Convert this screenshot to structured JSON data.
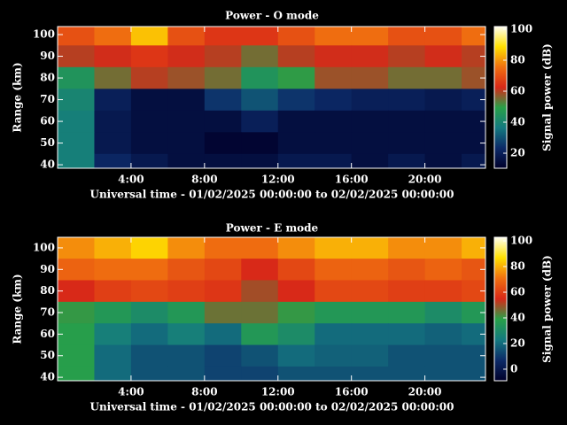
{
  "chart_data": [
    {
      "type": "heatmap",
      "title": "Power - O mode",
      "x_label": "Universal time - 01/02/2025 00:00:00 to 02/02/2025 00:00:00",
      "y_label": "Range (km)",
      "colorbar_label": "Signal power (dB)",
      "x": [
        1,
        3,
        5,
        7,
        9,
        11,
        13,
        15,
        17,
        19,
        21,
        23
      ],
      "y": [
        100,
        90,
        80,
        70,
        60,
        50,
        40
      ],
      "z": [
        [
          70,
          75,
          85,
          70,
          65,
          65,
          70,
          75,
          75,
          70,
          70,
          75
        ],
        [
          60,
          62,
          65,
          62,
          60,
          55,
          60,
          62,
          62,
          60,
          62,
          60
        ],
        [
          45,
          55,
          60,
          58,
          55,
          45,
          50,
          58,
          58,
          55,
          55,
          58
        ],
        [
          40,
          20,
          15,
          15,
          25,
          30,
          25,
          22,
          20,
          20,
          18,
          20
        ],
        [
          38,
          18,
          15,
          15,
          15,
          20,
          15,
          15,
          15,
          15,
          15,
          15
        ],
        [
          38,
          18,
          15,
          15,
          12,
          12,
          15,
          15,
          15,
          15,
          15,
          15
        ],
        [
          38,
          22,
          18,
          15,
          15,
          15,
          18,
          18,
          15,
          18,
          15,
          18
        ]
      ],
      "xlim": [
        0,
        23.3
      ],
      "ylim": [
        38.4,
        103.7
      ],
      "xticks": [
        {
          "value": 4,
          "label": "4:00"
        },
        {
          "value": 8,
          "label": "8:00"
        },
        {
          "value": 12,
          "label": "12:00"
        },
        {
          "value": 16,
          "label": "16:00"
        },
        {
          "value": 20,
          "label": "20:00"
        }
      ],
      "yticks": [
        40,
        50,
        60,
        70,
        80,
        90,
        100
      ],
      "clim": [
        10.3,
        101.7
      ],
      "cticks": [
        20,
        40,
        60,
        80,
        100
      ],
      "colormap": [
        "#00002a",
        "#0c2a68",
        "#147a80",
        "#28a048",
        "#d82818",
        "#f07010",
        "#ffe000",
        "#fffff0"
      ]
    },
    {
      "type": "heatmap",
      "title": "Power - E mode",
      "x_label": "Universal time - 01/02/2025 00:00:00 to 02/02/2025 00:00:00",
      "y_label": "Range (km)",
      "colorbar_label": "Signal power (dB)",
      "x": [
        1,
        3,
        5,
        7,
        9,
        11,
        13,
        15,
        17,
        19,
        21,
        23
      ],
      "y": [
        100,
        90,
        80,
        70,
        60,
        50,
        40
      ],
      "z": [
        [
          75,
          80,
          85,
          75,
          70,
          70,
          75,
          80,
          80,
          75,
          75,
          80
        ],
        [
          68,
          70,
          70,
          65,
          62,
          55,
          62,
          68,
          68,
          65,
          68,
          65
        ],
        [
          55,
          60,
          62,
          60,
          58,
          50,
          55,
          62,
          62,
          60,
          60,
          62
        ],
        [
          40,
          35,
          30,
          35,
          45,
          45,
          40,
          35,
          35,
          35,
          30,
          35
        ],
        [
          38,
          25,
          20,
          25,
          20,
          35,
          30,
          20,
          20,
          20,
          18,
          20
        ],
        [
          38,
          20,
          15,
          15,
          12,
          15,
          20,
          18,
          18,
          15,
          15,
          15
        ],
        [
          38,
          20,
          15,
          15,
          12,
          12,
          15,
          15,
          15,
          15,
          15,
          15
        ]
      ],
      "xlim": [
        0,
        23.3
      ],
      "ylim": [
        38.4,
        104.9
      ],
      "xticks": [
        {
          "value": 4,
          "label": "4:00"
        },
        {
          "value": 8,
          "label": "8:00"
        },
        {
          "value": 12,
          "label": "12:00"
        },
        {
          "value": 16,
          "label": "16:00"
        },
        {
          "value": 20,
          "label": "20:00"
        }
      ],
      "yticks": [
        40,
        50,
        60,
        70,
        80,
        90,
        100
      ],
      "clim": [
        -9,
        102.8
      ],
      "cticks": [
        0,
        20,
        40,
        60,
        80,
        100
      ],
      "colormap": [
        "#00002a",
        "#0c2a68",
        "#147a80",
        "#28a048",
        "#d82818",
        "#f07010",
        "#ffe000",
        "#fffff0"
      ]
    }
  ]
}
